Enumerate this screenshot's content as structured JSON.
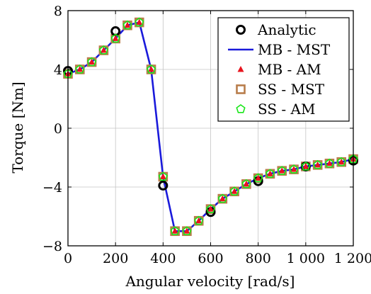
{
  "chart_data": {
    "type": "line",
    "xlabel": "Angular velocity [rad/s]",
    "ylabel": "Torque [Nm]",
    "xlim": [
      0,
      1200
    ],
    "ylim": [
      -8,
      8
    ],
    "xticks": [
      0,
      200,
      400,
      600,
      800,
      1000,
      1200
    ],
    "xtick_labels": [
      "0",
      "200",
      "400",
      "600",
      "800",
      "1 000",
      "1 200"
    ],
    "yticks": [
      -8,
      -4,
      0,
      4,
      8
    ],
    "ytick_labels": [
      "−8",
      "−4",
      "0",
      "4",
      "8"
    ],
    "grid": true,
    "legend_position": "top-right",
    "series": [
      {
        "name": "Analytic",
        "marker": "circle-open",
        "color": "#000000",
        "x": [
          0,
          200,
          400,
          600,
          800,
          1000,
          1200
        ],
        "y": [
          3.9,
          6.6,
          -3.9,
          -5.7,
          -3.6,
          -2.6,
          -2.2
        ]
      },
      {
        "name": "MB - MST",
        "marker": "line",
        "color": "#1a1adb",
        "x": [
          0,
          50,
          100,
          150,
          200,
          250,
          300,
          350,
          400,
          450,
          500,
          550,
          600,
          650,
          700,
          750,
          800,
          850,
          900,
          950,
          1000,
          1050,
          1100,
          1150,
          1200
        ],
        "y": [
          3.7,
          4.0,
          4.5,
          5.3,
          6.1,
          7.0,
          7.2,
          4.0,
          -3.3,
          -7.0,
          -7.0,
          -6.3,
          -5.5,
          -4.8,
          -4.3,
          -3.8,
          -3.4,
          -3.1,
          -2.9,
          -2.8,
          -2.6,
          -2.5,
          -2.4,
          -2.3,
          -2.1
        ]
      },
      {
        "name": "MB - AM",
        "marker": "triangle-filled",
        "color": "#e8141e",
        "x": [
          0,
          50,
          100,
          150,
          200,
          250,
          300,
          350,
          400,
          450,
          500,
          550,
          600,
          650,
          700,
          750,
          800,
          850,
          900,
          950,
          1000,
          1050,
          1100,
          1150,
          1200
        ],
        "y": [
          3.7,
          4.0,
          4.5,
          5.3,
          6.1,
          7.0,
          7.2,
          4.0,
          -3.3,
          -7.0,
          -7.0,
          -6.3,
          -5.5,
          -4.8,
          -4.3,
          -3.8,
          -3.4,
          -3.1,
          -2.9,
          -2.8,
          -2.6,
          -2.5,
          -2.4,
          -2.3,
          -2.1
        ]
      },
      {
        "name": "SS - MST",
        "marker": "square-open",
        "color": "#b87d4b",
        "x": [
          0,
          50,
          100,
          150,
          200,
          250,
          300,
          350,
          400,
          450,
          500,
          550,
          600,
          650,
          700,
          750,
          800,
          850,
          900,
          950,
          1000,
          1050,
          1100,
          1150,
          1200
        ],
        "y": [
          3.7,
          4.0,
          4.5,
          5.3,
          6.1,
          7.0,
          7.2,
          4.0,
          -3.3,
          -7.0,
          -7.0,
          -6.3,
          -5.5,
          -4.8,
          -4.3,
          -3.8,
          -3.4,
          -3.1,
          -2.9,
          -2.8,
          -2.6,
          -2.5,
          -2.4,
          -2.3,
          -2.1
        ]
      },
      {
        "name": "SS - AM",
        "marker": "pentagon-open",
        "color": "#19e619",
        "x": [
          0,
          50,
          100,
          150,
          200,
          250,
          300,
          350,
          400,
          450,
          500,
          550,
          600,
          650,
          700,
          750,
          800,
          850,
          900,
          950,
          1000,
          1050,
          1100,
          1150,
          1200
        ],
        "y": [
          3.7,
          4.0,
          4.5,
          5.3,
          6.1,
          7.0,
          7.2,
          4.0,
          -3.3,
          -7.0,
          -7.0,
          -6.3,
          -5.5,
          -4.8,
          -4.3,
          -3.8,
          -3.4,
          -3.1,
          -2.9,
          -2.8,
          -2.6,
          -2.5,
          -2.4,
          -2.3,
          -2.1
        ]
      }
    ]
  }
}
